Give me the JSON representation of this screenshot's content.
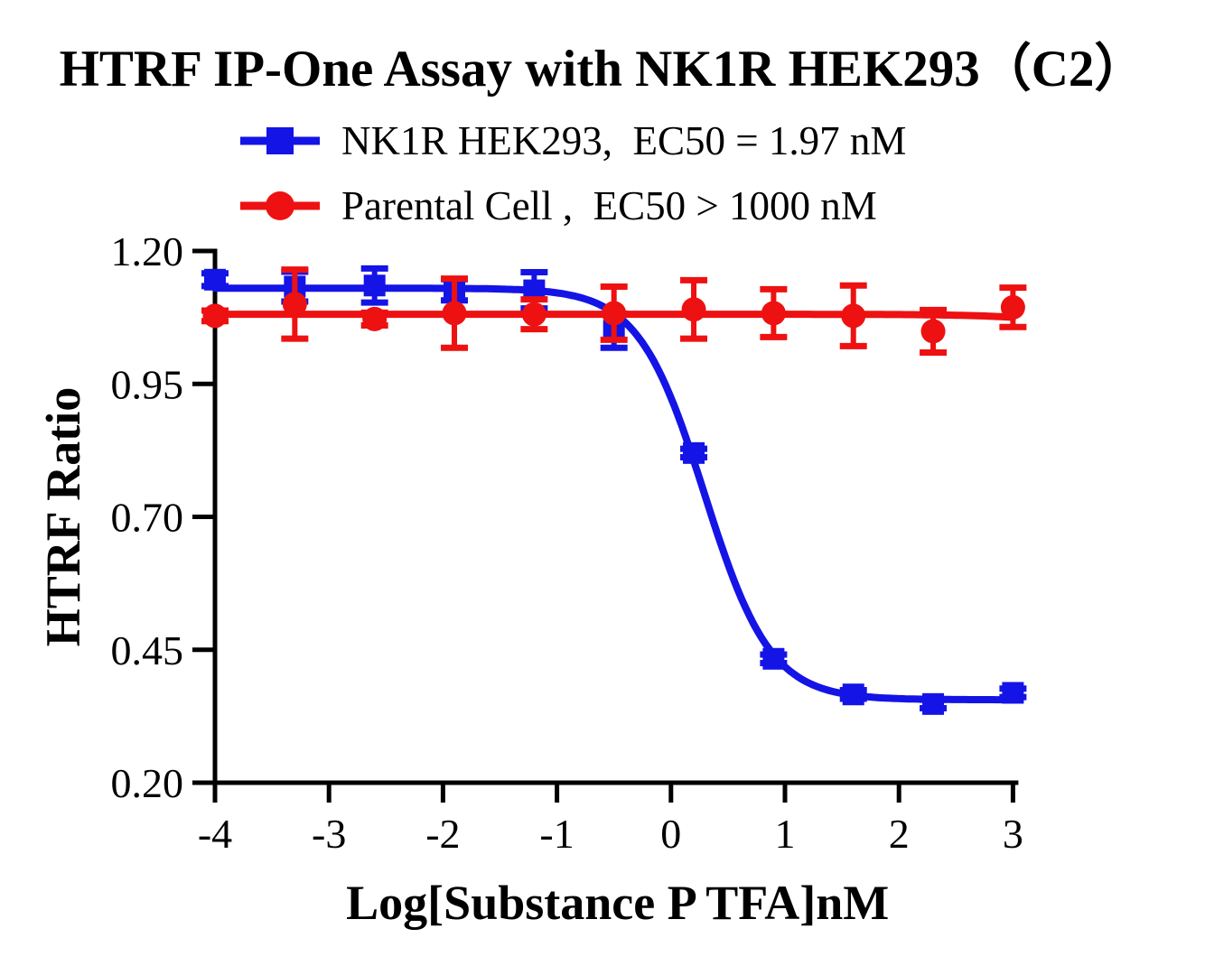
{
  "title": "HTRF IP-One Assay with NK1R HEK293（C2）",
  "legend": {
    "entries": [
      {
        "label": "NK1R HEK293,  EC50 = 1.97 nM",
        "marker": "square-on-line-icon",
        "color": "#1414e6"
      },
      {
        "label": "Parental Cell ,  EC50 > 1000 nM",
        "marker": "circle-on-line-icon",
        "color": "#ee1111"
      }
    ]
  },
  "chart_data": {
    "type": "line",
    "title": "HTRF IP-One Assay with NK1R HEK293（C2）",
    "xlabel": "Log[Substance P TFA]nM",
    "ylabel": "HTRF Ratio",
    "xlim": [
      -4,
      3
    ],
    "ylim": [
      0.2,
      1.2
    ],
    "x_ticks": [
      -4,
      -3,
      -2,
      -1,
      0,
      1,
      2,
      3
    ],
    "x_tick_labels": [
      "-4",
      "-3",
      "-2",
      "-1",
      "0",
      "1",
      "2",
      "3"
    ],
    "y_ticks": [
      1.2,
      0.95,
      0.7,
      0.45,
      0.2
    ],
    "y_tick_labels": [
      "1.20",
      "0.95",
      "0.70",
      "0.45",
      "0.20"
    ],
    "grid": false,
    "legend_position": "top-center",
    "axis_color": "#000000",
    "x": [
      -4,
      -3.3,
      -2.6,
      -1.9,
      -1.2,
      -0.5,
      0.2,
      0.9,
      1.6,
      2.3,
      3
    ],
    "series": [
      {
        "name": "NK1R HEK293",
        "ec50_label": "EC50 = 1.97 nM",
        "color": "#1414e6",
        "marker": "square",
        "y": [
          1.146,
          1.133,
          1.135,
          1.127,
          1.126,
          1.05,
          0.82,
          0.433,
          0.366,
          0.348,
          0.369
        ],
        "err": [
          0.012,
          0.028,
          0.032,
          0.02,
          0.034,
          0.032,
          0.008,
          0.008,
          0.008,
          0.008,
          0.008
        ],
        "fit": {
          "model": "4PL",
          "top": 1.13,
          "bottom": 0.356,
          "logEC50": 0.294,
          "hill": 1.5
        }
      },
      {
        "name": "Parental Cell",
        "ec50_label": "EC50 > 1000 nM",
        "color": "#ee1111",
        "marker": "circle",
        "y": [
          1.078,
          1.1,
          1.072,
          1.083,
          1.081,
          1.083,
          1.09,
          1.083,
          1.078,
          1.049,
          1.094
        ],
        "err": [
          0.01,
          0.065,
          0.012,
          0.065,
          0.028,
          0.05,
          0.055,
          0.045,
          0.057,
          0.04,
          0.037
        ],
        "fit": {
          "model": "4PL",
          "top": 1.081,
          "bottom": 0.5,
          "logEC50": 5.0,
          "hill": 1.0
        }
      }
    ]
  }
}
